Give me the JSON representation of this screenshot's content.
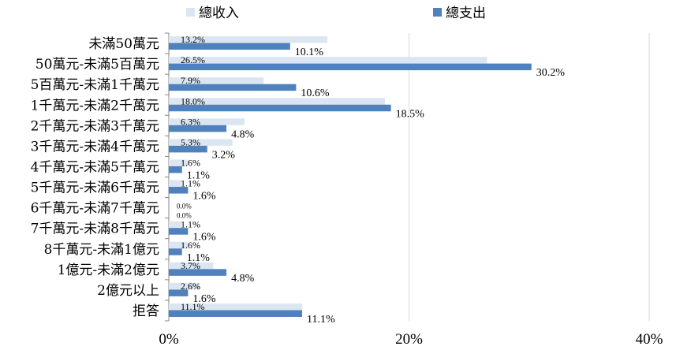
{
  "chart_data": {
    "type": "bar",
    "orientation": "horizontal",
    "categories": [
      "未滿50萬元",
      "50萬元-未滿5百萬元",
      "5百萬元-未滿1千萬元",
      "1千萬元-未滿2千萬元",
      "2千萬元-未滿3千萬元",
      "3千萬元-未滿4千萬元",
      "4千萬元-未滿5千萬元",
      "5千萬元-未滿6千萬元",
      "6千萬元-未滿7千萬元",
      "7千萬元-未滿8千萬元",
      "8千萬元-未滿1億元",
      "1億元-未滿2億元",
      "2億元以上",
      "拒答"
    ],
    "series": [
      {
        "name": "總收入",
        "color": "#dce6f2",
        "values": [
          13.2,
          26.5,
          7.9,
          18.0,
          6.3,
          5.3,
          1.6,
          1.1,
          0.0,
          1.1,
          1.6,
          3.7,
          2.6,
          11.1
        ],
        "labels": [
          "13.2%",
          "26.5%",
          "7.9%",
          "18.0%",
          "6.3%",
          "5.3%",
          "1.6%",
          "1.1%",
          "0.0%",
          "1.1%",
          "1.6%",
          "3.7%",
          "2.6%",
          "11.1%"
        ]
      },
      {
        "name": "總支出",
        "color": "#4f81bd",
        "values": [
          10.1,
          30.2,
          10.6,
          18.5,
          4.8,
          3.2,
          1.1,
          1.6,
          0.0,
          1.6,
          1.1,
          4.8,
          1.6,
          11.1
        ],
        "labels": [
          "10.1%",
          "30.2%",
          "10.6%",
          "18.5%",
          "4.8%",
          "3.2%",
          "1.1%",
          "1.6%",
          "0.0%",
          "1.6%",
          "1.1%",
          "4.8%",
          "1.6%",
          "11.1%"
        ]
      }
    ],
    "x_ticks": [
      "0%",
      "20%",
      "40%"
    ],
    "xlim": [
      0,
      40
    ],
    "grid": true,
    "legend_position": "top"
  }
}
